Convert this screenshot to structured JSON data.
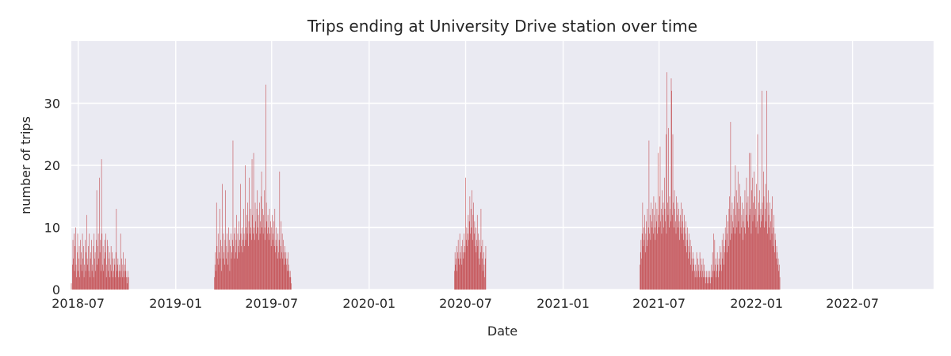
{
  "chart_data": {
    "type": "bar",
    "title": "Trips ending at University Drive station over time",
    "xlabel": "Date",
    "ylabel": "number of trips",
    "xlim": [
      "2018-06-18",
      "2022-12-01"
    ],
    "ylim": [
      0,
      40
    ],
    "x_ticks": [
      "2018-07",
      "2019-01",
      "2019-07",
      "2020-01",
      "2020-07",
      "2021-01",
      "2021-07",
      "2022-01",
      "2022-07"
    ],
    "y_ticks": [
      0,
      10,
      20,
      30
    ],
    "grid": true,
    "bar_color": "#c44e52",
    "background_color": "#eaeaf2",
    "series": [
      {
        "periods": [
          {
            "start": "2018-06-18",
            "values": [
              1,
              0,
              4,
              8,
              5,
              9,
              3,
              7,
              10,
              4,
              2,
              6,
              9,
              3,
              5,
              7,
              2,
              8,
              4,
              6,
              3,
              9,
              5,
              7,
              2,
              4,
              8,
              3,
              6,
              12,
              5,
              4,
              7,
              3,
              9,
              2,
              5,
              6,
              8,
              3,
              4,
              7,
              2,
              9,
              5,
              6,
              3,
              8,
              16,
              4,
              7,
              9,
              5,
              18,
              6,
              8,
              3,
              21,
              9,
              4,
              7,
              3,
              5,
              8,
              6,
              9,
              2,
              4,
              8,
              7,
              3,
              5,
              6,
              2,
              4,
              7,
              3,
              6,
              5,
              2,
              3,
              5,
              4,
              2,
              6,
              13,
              3,
              4,
              5,
              2,
              3,
              4,
              2,
              9,
              3,
              5,
              2,
              4,
              6,
              3,
              2,
              4,
              5,
              3,
              2,
              1,
              2,
              3,
              2
            ]
          },
          {
            "start": "2019-03-15",
            "values": [
              2,
              4,
              6,
              3,
              14,
              7,
              5,
              9,
              4,
              6,
              13,
              5,
              8,
              3,
              7,
              17,
              5,
              9,
              6,
              4,
              8,
              16,
              5,
              7,
              9,
              4,
              6,
              10,
              8,
              3,
              7,
              9,
              5,
              6,
              8,
              24,
              7,
              9,
              5,
              10,
              6,
              8,
              12,
              5,
              9,
              7,
              11,
              6,
              8,
              17,
              9,
              7,
              10,
              6,
              8,
              13,
              9,
              7,
              20,
              8,
              10,
              12,
              9,
              14,
              7,
              11,
              18,
              9,
              13,
              10,
              8,
              21,
              12,
              9,
              22,
              10,
              8,
              14,
              11,
              9,
              13,
              16,
              10,
              12,
              8,
              14,
              9,
              11,
              15,
              19,
              10,
              13,
              9,
              12,
              16,
              10,
              8,
              33,
              14,
              11,
              9,
              12,
              10,
              8,
              13,
              9,
              11,
              7,
              10,
              12,
              8,
              9,
              11,
              7,
              13,
              6,
              8,
              10,
              7,
              5,
              9,
              6,
              8,
              19,
              5,
              7,
              11,
              6,
              9,
              5,
              8,
              6,
              4,
              7,
              5,
              6,
              4,
              5,
              3,
              6,
              4,
              3,
              2,
              3,
              2,
              1
            ]
          },
          {
            "start": "2020-06-10",
            "values": [
              3,
              6,
              4,
              5,
              7,
              3,
              6,
              8,
              5,
              4,
              9,
              6,
              5,
              7,
              4,
              8,
              6,
              5,
              9,
              7,
              6,
              18,
              8,
              10,
              7,
              9,
              12,
              8,
              11,
              15,
              9,
              13,
              10,
              16,
              8,
              12,
              14,
              9,
              11,
              7,
              10,
              6,
              8,
              12,
              7,
              9,
              5,
              8,
              4,
              6,
              13,
              7,
              5,
              8,
              3,
              6,
              4,
              2,
              5,
              7
            ]
          },
          {
            "start": "2021-05-26",
            "values": [
              4,
              6,
              8,
              5,
              9,
              14,
              7,
              10,
              8,
              12,
              6,
              9,
              11,
              7,
              13,
              8,
              10,
              24,
              9,
              12,
              8,
              14,
              11,
              10,
              13,
              9,
              15,
              12,
              10,
              8,
              14,
              11,
              13,
              9,
              22,
              12,
              10,
              15,
              23,
              11,
              13,
              9,
              16,
              12,
              14,
              10,
              18,
              13,
              11,
              25,
              9,
              35,
              14,
              12,
              26,
              10,
              15,
              13,
              11,
              34,
              32,
              12,
              25,
              14,
              10,
              16,
              13,
              11,
              9,
              15,
              12,
              14,
              10,
              13,
              11,
              8,
              12,
              10,
              14,
              9,
              11,
              13,
              8,
              10,
              12,
              7,
              9,
              11,
              6,
              8,
              10,
              5,
              7,
              9,
              6,
              8,
              4,
              7,
              5,
              3,
              6,
              4,
              5,
              3,
              2,
              4,
              3,
              6,
              2,
              5,
              3,
              4,
              2,
              6,
              3,
              5,
              2,
              4,
              3,
              5,
              2,
              4,
              3,
              2,
              1,
              2,
              3,
              1,
              2,
              3,
              1,
              2,
              3,
              1,
              2,
              4,
              2,
              6,
              3,
              9,
              3,
              8,
              4,
              5,
              2,
              3,
              6,
              4,
              2,
              5,
              3,
              7,
              4,
              6,
              3,
              8,
              5,
              9,
              4,
              7,
              6,
              10,
              8,
              12,
              6,
              9,
              11,
              7,
              13,
              15,
              8,
              27,
              12,
              9,
              14,
              11,
              10,
              13,
              15,
              9,
              20,
              12,
              16,
              10,
              14,
              19,
              11,
              13,
              17,
              9,
              15,
              10,
              12,
              14,
              8,
              11,
              13,
              10,
              16,
              9,
              12,
              18,
              14,
              11,
              15,
              10,
              22,
              12,
              13,
              22,
              9,
              16,
              18,
              11,
              14,
              19,
              12,
              15,
              13,
              10,
              17,
              11,
              25,
              9,
              14,
              12,
              16,
              10,
              13,
              11,
              32,
              14,
              12,
              19,
              15,
              10,
              13,
              17,
              11,
              32,
              14,
              9,
              16,
              12,
              10,
              14,
              8,
              11,
              13,
              9,
              15,
              7,
              10,
              12,
              6,
              9,
              8,
              5,
              7,
              6,
              4,
              5,
              3,
              4,
              2
            ]
          }
        ]
      }
    ]
  }
}
